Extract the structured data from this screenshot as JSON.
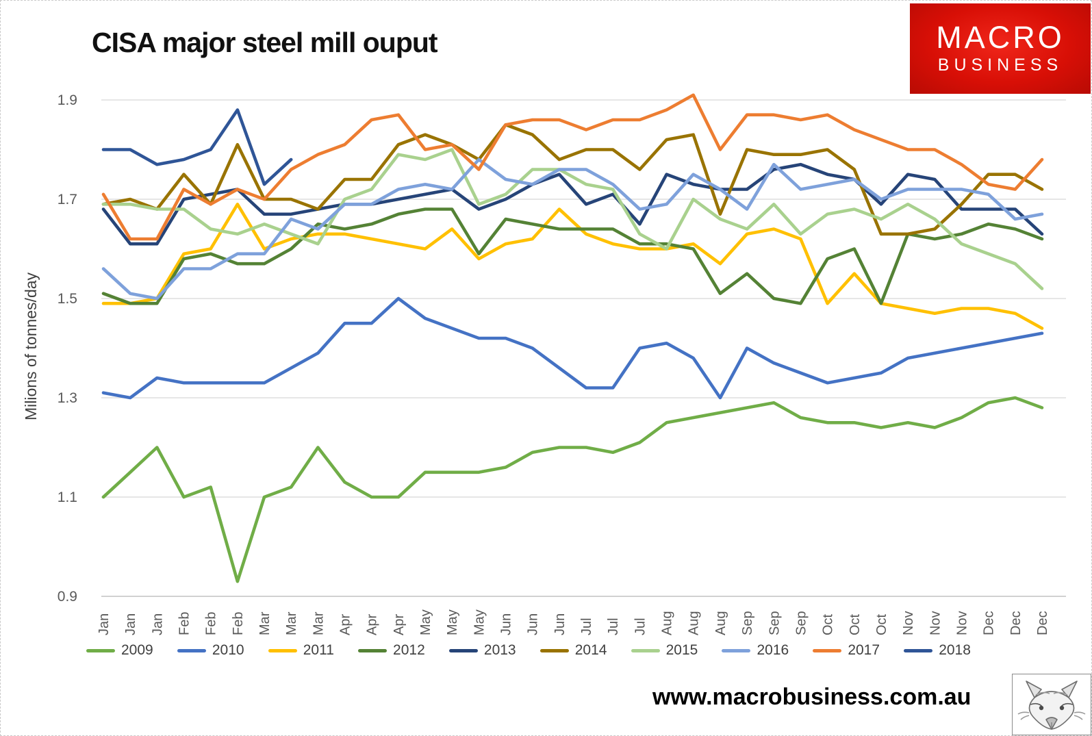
{
  "header": {
    "title": "CISA major steel mill ouput",
    "logo": {
      "line1": "MACRO",
      "line2": "BUSINESS",
      "bg_color": "#d80f06",
      "text_color": "#ffffff"
    }
  },
  "footer": {
    "website": "www.macrobusiness.com.au",
    "fox_icon": "fox-sketch-image"
  },
  "chart_data": {
    "type": "line",
    "title": "CISA major steel mill ouput",
    "xlabel": "",
    "ylabel": "Milions of tonnes/day",
    "ylim": [
      0.9,
      1.9
    ],
    "yticks": [
      1.9,
      1.7,
      1.5,
      1.3,
      1.1,
      0.9
    ],
    "grid": true,
    "legend_position": "bottom",
    "grid_color": "#dddddd",
    "axis_color": "#c2c2c2",
    "tick_label_color": "#595959",
    "categories": [
      "Jan",
      "Jan",
      "Jan",
      "Feb",
      "Feb",
      "Feb",
      "Mar",
      "Mar",
      "Mar",
      "Apr",
      "Apr",
      "Apr",
      "May",
      "May",
      "May",
      "Jun",
      "Jun",
      "Jun",
      "Jul",
      "Jul",
      "Jul",
      "Aug",
      "Aug",
      "Aug",
      "Sep",
      "Sep",
      "Sep",
      "Oct",
      "Oct",
      "Oct",
      "Nov",
      "Nov",
      "Nov",
      "Dec",
      "Dec",
      "Dec"
    ],
    "series": [
      {
        "name": "2009",
        "color": "#70AD47",
        "values": [
          1.1,
          1.15,
          1.2,
          1.1,
          1.12,
          0.93,
          1.1,
          1.12,
          1.2,
          1.13,
          1.1,
          1.1,
          1.15,
          1.15,
          1.15,
          1.16,
          1.19,
          1.2,
          1.2,
          1.19,
          1.21,
          1.25,
          1.26,
          1.27,
          1.28,
          1.29,
          1.26,
          1.25,
          1.25,
          1.24,
          1.25,
          1.24,
          1.26,
          1.29,
          1.3,
          1.28
        ]
      },
      {
        "name": "2010",
        "color": "#4472C4",
        "values": [
          1.31,
          1.3,
          1.34,
          1.33,
          1.33,
          1.33,
          1.33,
          1.36,
          1.39,
          1.45,
          1.45,
          1.5,
          1.46,
          1.44,
          1.42,
          1.42,
          1.4,
          1.36,
          1.32,
          1.32,
          1.4,
          1.41,
          1.38,
          1.3,
          1.4,
          1.37,
          1.35,
          1.33,
          1.34,
          1.35,
          1.38,
          1.39,
          1.4,
          1.41,
          1.42,
          1.43
        ]
      },
      {
        "name": "2011",
        "color": "#FFC000",
        "values": [
          1.49,
          1.49,
          1.5,
          1.59,
          1.6,
          1.69,
          1.6,
          1.62,
          1.63,
          1.63,
          1.62,
          1.61,
          1.6,
          1.64,
          1.58,
          1.61,
          1.62,
          1.68,
          1.63,
          1.61,
          1.6,
          1.6,
          1.61,
          1.57,
          1.63,
          1.64,
          1.62,
          1.49,
          1.55,
          1.49,
          1.48,
          1.47,
          1.48,
          1.48,
          1.47,
          1.44
        ]
      },
      {
        "name": "2012",
        "color": "#548235",
        "values": [
          1.51,
          1.49,
          1.49,
          1.58,
          1.59,
          1.57,
          1.57,
          1.6,
          1.65,
          1.64,
          1.65,
          1.67,
          1.68,
          1.68,
          1.59,
          1.66,
          1.65,
          1.64,
          1.64,
          1.64,
          1.61,
          1.61,
          1.6,
          1.51,
          1.55,
          1.5,
          1.49,
          1.58,
          1.6,
          1.49,
          1.63,
          1.62,
          1.63,
          1.65,
          1.64,
          1.62
        ]
      },
      {
        "name": "2013",
        "color": "#264478",
        "values": [
          1.68,
          1.61,
          1.61,
          1.7,
          1.71,
          1.72,
          1.67,
          1.67,
          1.68,
          1.69,
          1.69,
          1.7,
          1.71,
          1.72,
          1.68,
          1.7,
          1.73,
          1.75,
          1.69,
          1.71,
          1.65,
          1.75,
          1.73,
          1.72,
          1.72,
          1.76,
          1.77,
          1.75,
          1.74,
          1.69,
          1.75,
          1.74,
          1.68,
          1.68,
          1.68,
          1.63
        ]
      },
      {
        "name": "2014",
        "color": "#997300",
        "values": [
          1.69,
          1.7,
          1.68,
          1.75,
          1.69,
          1.81,
          1.7,
          1.7,
          1.68,
          1.74,
          1.74,
          1.81,
          1.83,
          1.81,
          1.78,
          1.85,
          1.83,
          1.78,
          1.8,
          1.8,
          1.76,
          1.82,
          1.83,
          1.67,
          1.8,
          1.79,
          1.79,
          1.8,
          1.76,
          1.63,
          1.63,
          1.64,
          1.69,
          1.75,
          1.75,
          1.72
        ]
      },
      {
        "name": "2015",
        "color": "#A9D18E",
        "values": [
          1.69,
          1.69,
          1.68,
          1.68,
          1.64,
          1.63,
          1.65,
          1.63,
          1.61,
          1.7,
          1.72,
          1.79,
          1.78,
          1.8,
          1.69,
          1.71,
          1.76,
          1.76,
          1.73,
          1.72,
          1.63,
          1.6,
          1.7,
          1.66,
          1.64,
          1.69,
          1.63,
          1.67,
          1.68,
          1.66,
          1.69,
          1.66,
          1.61,
          1.59,
          1.57,
          1.52
        ]
      },
      {
        "name": "2016",
        "color": "#7EA1DB",
        "values": [
          1.56,
          1.51,
          1.5,
          1.56,
          1.56,
          1.59,
          1.59,
          1.66,
          1.64,
          1.69,
          1.69,
          1.72,
          1.73,
          1.72,
          1.78,
          1.74,
          1.73,
          1.76,
          1.76,
          1.73,
          1.68,
          1.69,
          1.75,
          1.72,
          1.68,
          1.77,
          1.72,
          1.73,
          1.74,
          1.7,
          1.72,
          1.72,
          1.72,
          1.71,
          1.66,
          1.67
        ]
      },
      {
        "name": "2017",
        "color": "#ED7D31",
        "values": [
          1.71,
          1.62,
          1.62,
          1.72,
          1.69,
          1.72,
          1.7,
          1.76,
          1.79,
          1.81,
          1.86,
          1.87,
          1.8,
          1.81,
          1.76,
          1.85,
          1.86,
          1.86,
          1.84,
          1.86,
          1.86,
          1.88,
          1.91,
          1.8,
          1.87,
          1.87,
          1.86,
          1.87,
          1.84,
          1.82,
          1.8,
          1.8,
          1.77,
          1.73,
          1.72,
          1.78
        ]
      },
      {
        "name": "2018",
        "color": "#2F5597",
        "values": [
          1.8,
          1.8,
          1.77,
          1.78,
          1.8,
          1.88,
          1.73,
          1.78
        ]
      }
    ]
  }
}
